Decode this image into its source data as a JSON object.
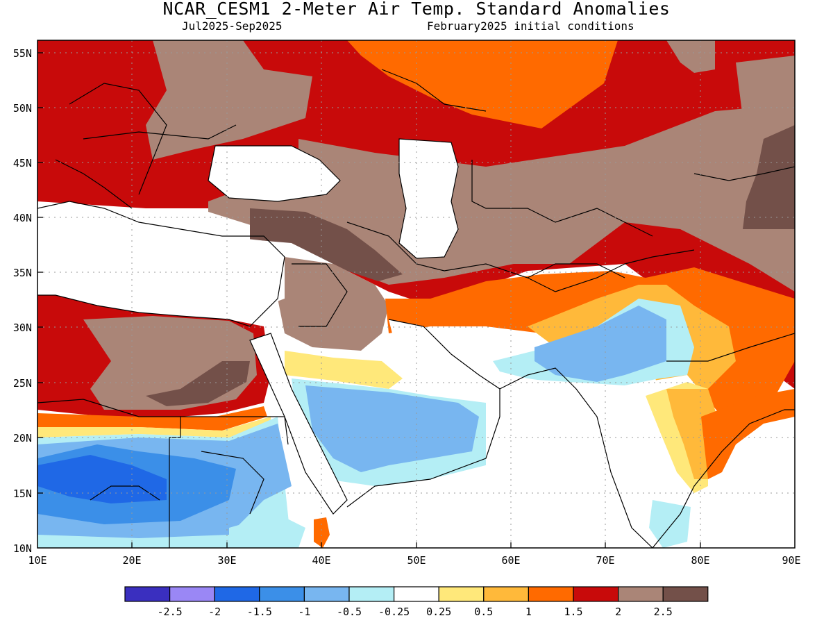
{
  "title": "NCAR_CESM1 2-Meter Air Temp. Standard Anomalies",
  "subtitle_left": "Jul2025-Sep2025",
  "subtitle_right": "February2025 initial conditions",
  "lat_labels": [
    "55N",
    "50N",
    "45N",
    "40N",
    "35N",
    "30N",
    "25N",
    "20N",
    "15N",
    "10N"
  ],
  "lon_labels": [
    "10E",
    "20E",
    "30E",
    "40E",
    "50E",
    "60E",
    "70E",
    "80E",
    "90E"
  ],
  "legend": {
    "colors": [
      "#3a2fbf",
      "#9a87f5",
      "#1f68e6",
      "#3b8fe8",
      "#78b6f0",
      "#b4eef5",
      "#ffffff",
      "#ffe87a",
      "#ffb93a",
      "#ff6a00",
      "#c80a0a",
      "#aa8577",
      "#735049"
    ],
    "labels": [
      "-2.5",
      "-2",
      "-1.5",
      "-1",
      "-0.5",
      "-0.25",
      "0.25",
      "0.5",
      "1",
      "1.5",
      "2",
      "2.5"
    ]
  },
  "palette": {
    "brown_dark": "#735049",
    "brown": "#aa8577",
    "red": "#c80a0a",
    "orange": "#ff6a00",
    "lt_orange": "#ffb93a",
    "yellow": "#ffe87a",
    "lt_cyan": "#b4eef5",
    "lt_blue": "#78b6f0",
    "blue": "#3b8fe8",
    "dk_blue": "#1f68e6"
  }
}
